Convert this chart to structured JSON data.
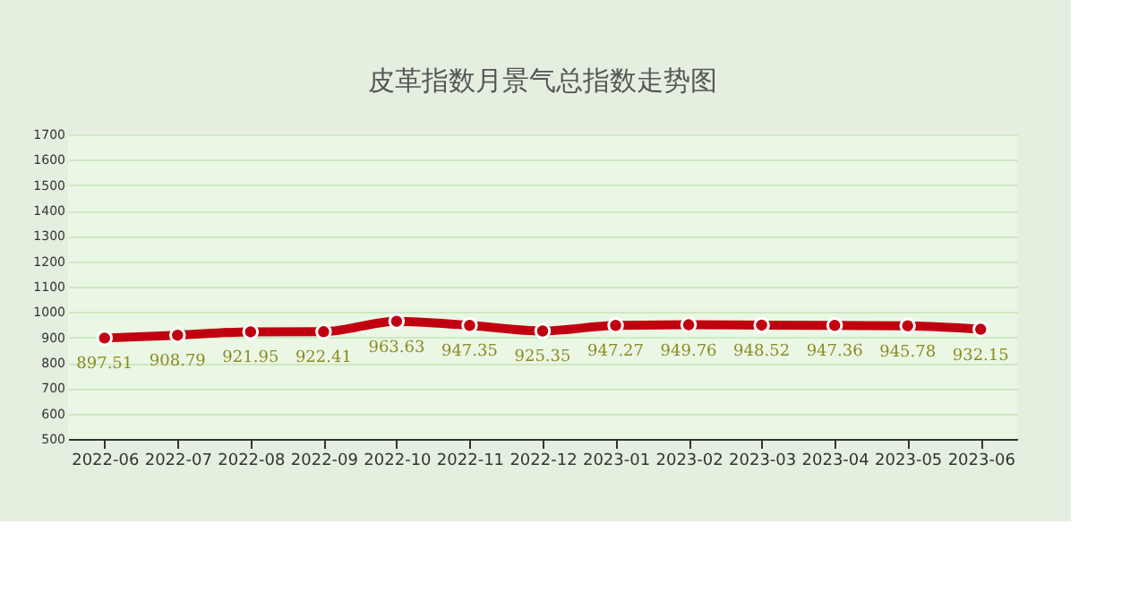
{
  "chart_data": {
    "type": "line",
    "title": "皮革指数月景气总指数走势图",
    "categories": [
      "2022-06",
      "2022-07",
      "2022-08",
      "2022-09",
      "2022-10",
      "2022-11",
      "2022-12",
      "2023-01",
      "2023-02",
      "2023-03",
      "2023-04",
      "2023-05",
      "2023-06"
    ],
    "series": [
      {
        "color": "#c00010",
        "values": [
          897.51,
          908.79,
          921.95,
          922.41,
          963.63,
          947.35,
          925.35,
          947.27,
          949.76,
          948.52,
          947.36,
          945.78,
          932.15
        ]
      }
    ],
    "ylim": [
      500,
      1700
    ],
    "yticks": [
      500,
      600,
      700,
      800,
      900,
      1000,
      1100,
      1200,
      1300,
      1400,
      1500,
      1600,
      1700
    ],
    "grid": "y",
    "marker": "circle",
    "line_style": "solid",
    "data_labels": true
  }
}
